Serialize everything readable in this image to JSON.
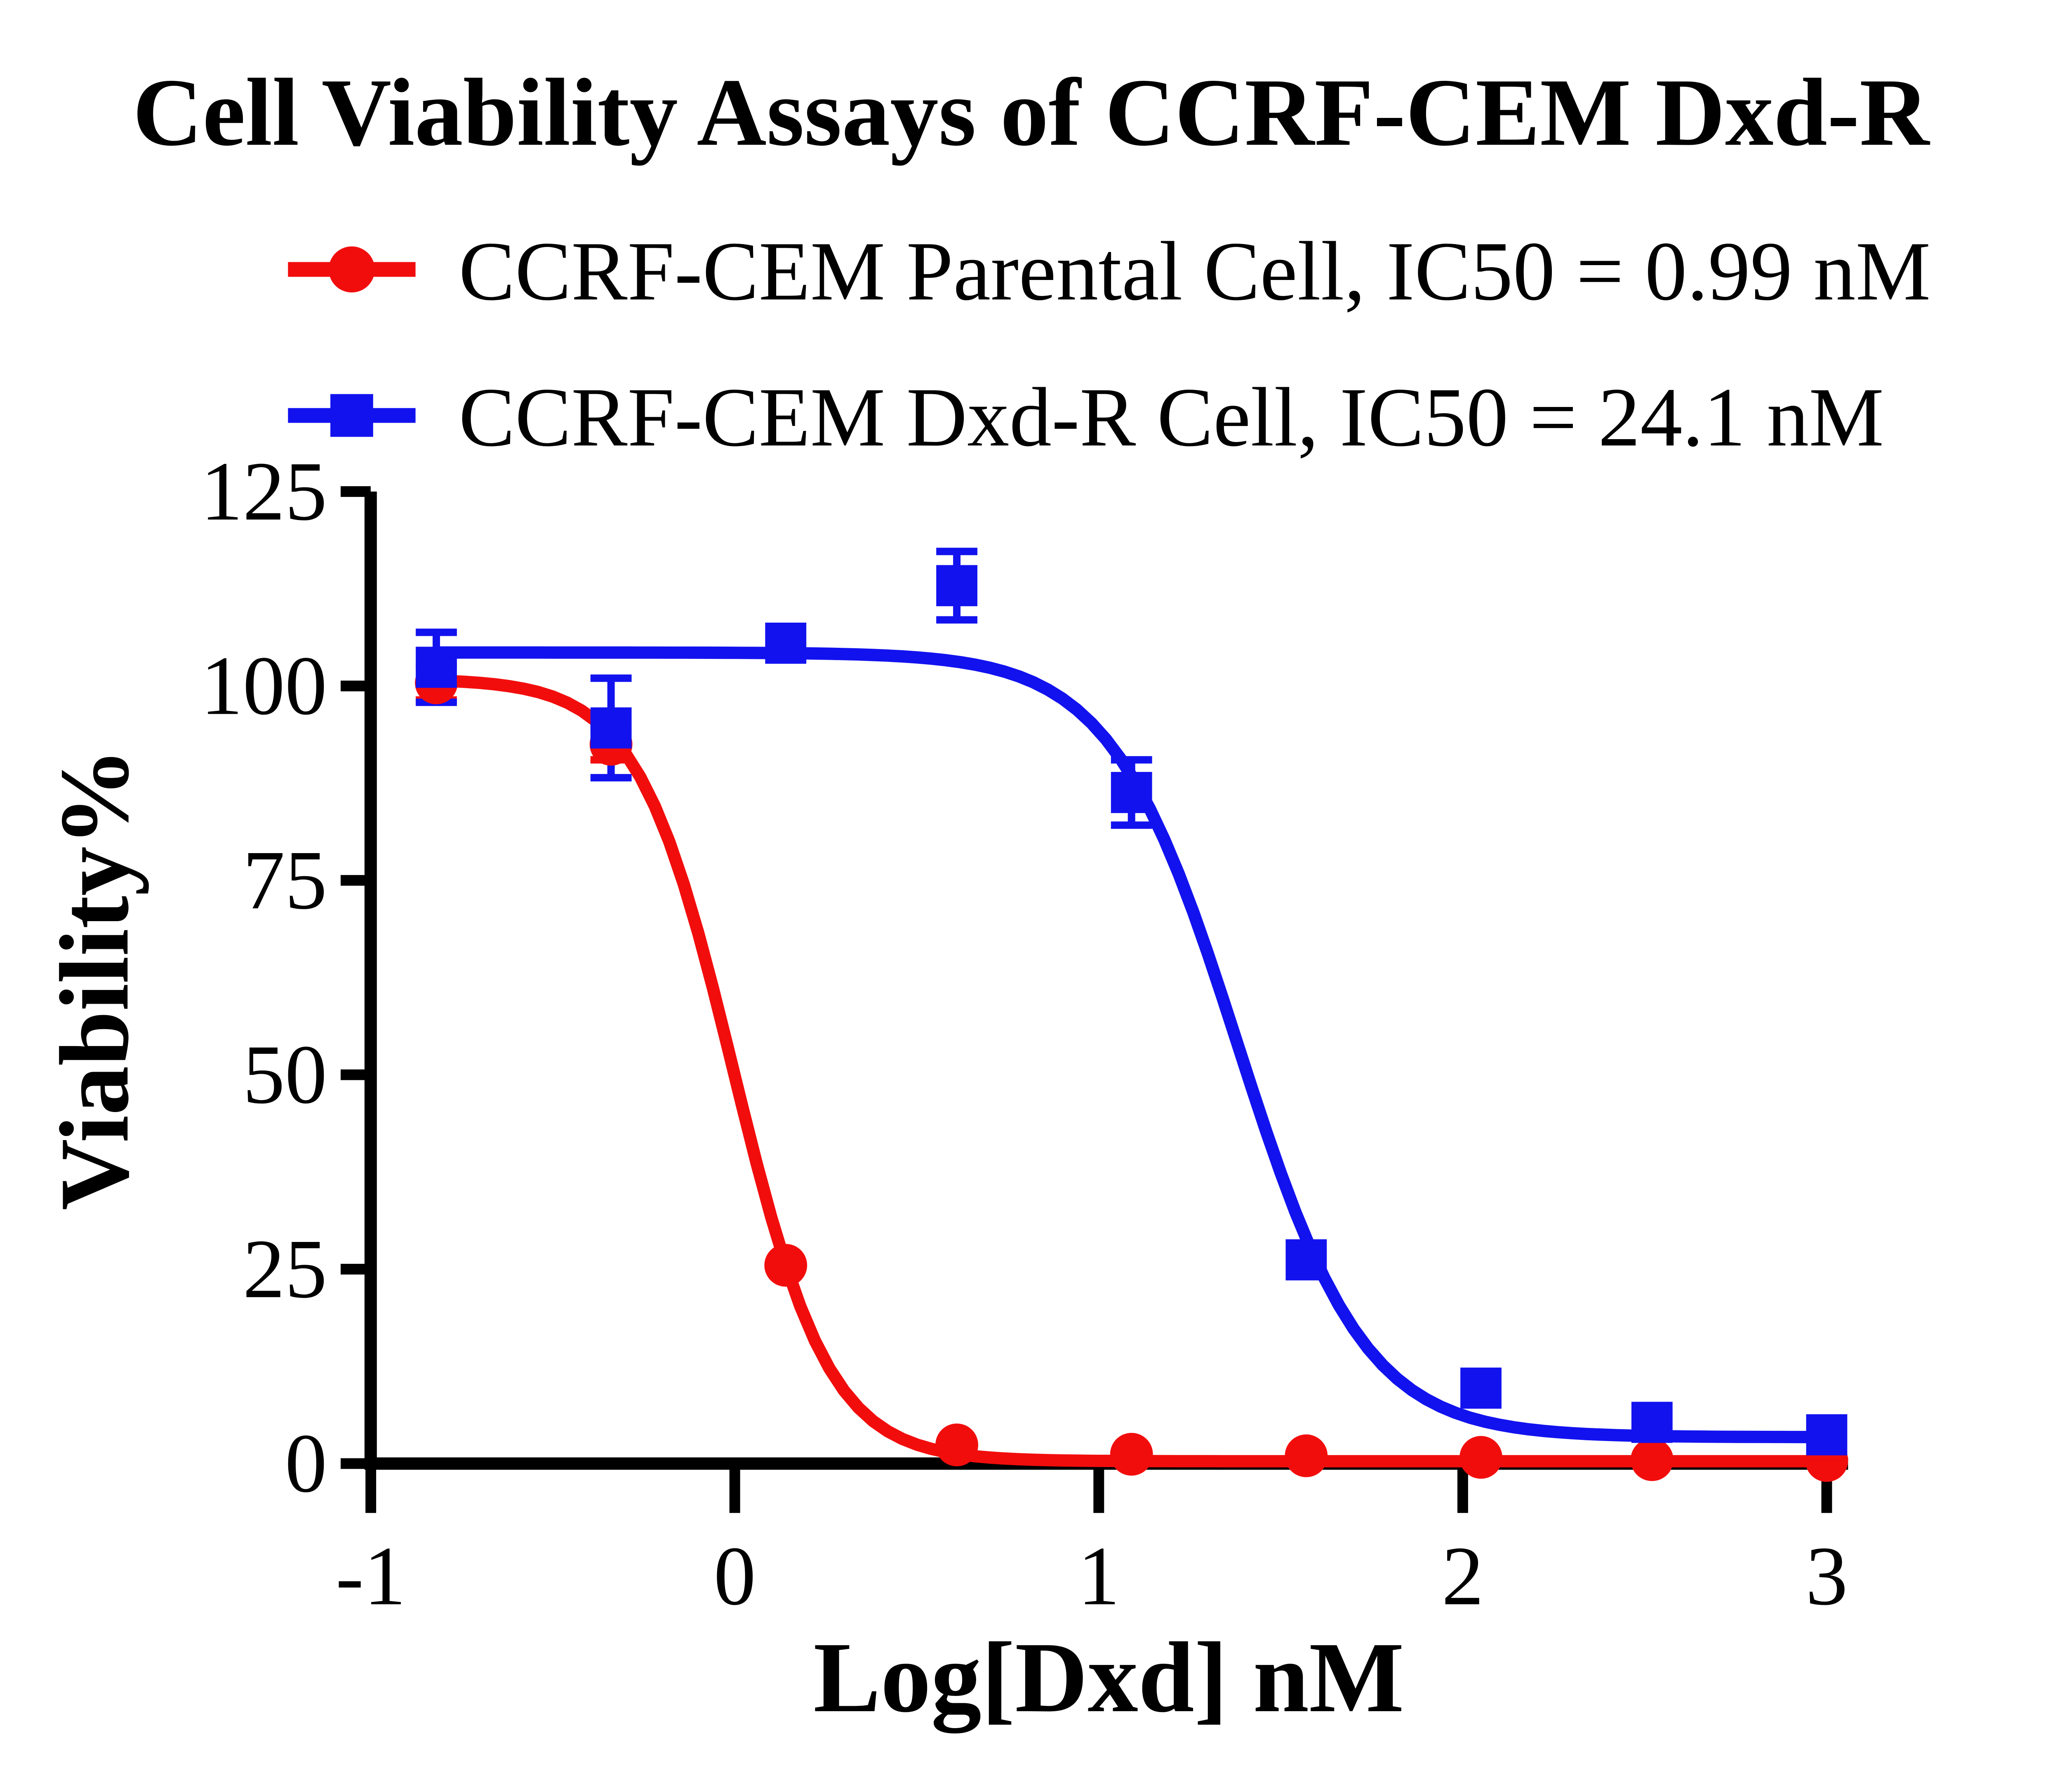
{
  "chart_data": {
    "type": "line",
    "title": "Cell Viability Assays of CCRF-CEM Dxd-R",
    "xlabel": "Log[Dxd] nM",
    "ylabel": "Viability%",
    "xlim": [
      -1,
      3
    ],
    "ylim": [
      0,
      125
    ],
    "x_ticks": [
      -1,
      0,
      1,
      2,
      3
    ],
    "y_ticks": [
      0,
      25,
      50,
      75,
      100,
      125
    ],
    "grid": false,
    "legend_position": "top-left",
    "axis_color": "#000000",
    "background_color": "#ffffff",
    "series": [
      {
        "name": "CCRF-CEM Parental Cell, IC50 = 0.99 nM",
        "color": "#f20d0d",
        "marker": "circle",
        "x": [
          -0.82,
          -0.34,
          0.14,
          0.61,
          1.09,
          1.57,
          2.05,
          2.52,
          3.0
        ],
        "y": [
          100.4,
          92.5,
          25.5,
          2.4,
          1.2,
          1.0,
          0.8,
          0.5,
          0.4
        ],
        "yerr": [
          2.2,
          2.0,
          0,
          0,
          0,
          0,
          0,
          0,
          0
        ],
        "fit": {
          "model": "4PL",
          "top": 100.9,
          "bottom": 0.3,
          "logIC50": -0.004,
          "hill": 3.3,
          "ic50_label": "0.99 nM"
        }
      },
      {
        "name": "CCRF-CEM Dxd-R Cell, IC50 = 24.1 nM",
        "color": "#1212ef",
        "marker": "square",
        "x": [
          -0.82,
          -0.34,
          0.14,
          0.61,
          1.09,
          1.57,
          2.05,
          2.52,
          3.0
        ],
        "y": [
          102.4,
          94.6,
          105.5,
          112.9,
          86.3,
          26.2,
          9.7,
          5.3,
          3.7
        ],
        "yerr": [
          4.5,
          6.4,
          0,
          4.4,
          4.2,
          0,
          0,
          0,
          0
        ],
        "fit": {
          "model": "4PL",
          "top": 104.3,
          "bottom": 3.4,
          "logIC50": 1.382,
          "hill": 2.5,
          "ic50_label": "24.1 nM"
        }
      }
    ]
  }
}
